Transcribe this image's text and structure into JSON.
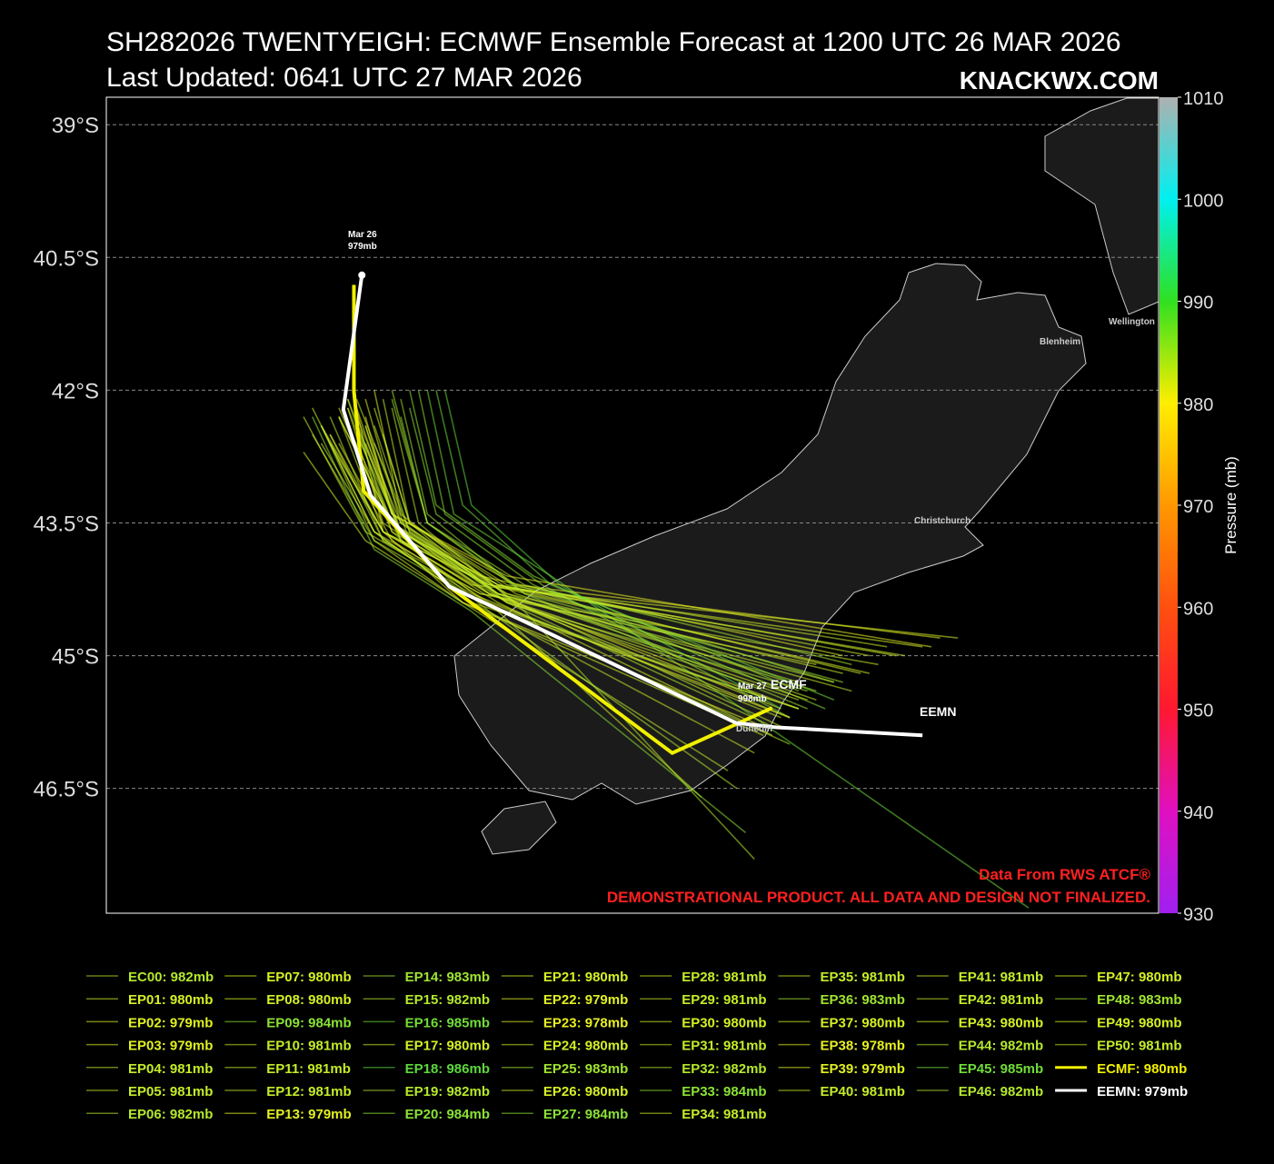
{
  "chart_data": {
    "type": "track",
    "title": "SH282026 TWENTYEIGH: ECMWF Ensemble Forecast at 1200 UTC 26 MAR 2026",
    "subtitle": "Last Updated: 0641 UTC 27 MAR 2026",
    "brand": "KNACKWX.COM",
    "xlim": [
      163.17,
      175.07
    ],
    "ylim": [
      -47.91,
      -38.69
    ],
    "yticks": [
      {
        "value": -39,
        "label": "39°S"
      },
      {
        "value": -40.5,
        "label": "40.5°S"
      },
      {
        "value": -42,
        "label": "42°S"
      },
      {
        "value": -43.5,
        "label": "43.5°S"
      },
      {
        "value": -45,
        "label": "45°S"
      },
      {
        "value": -46.5,
        "label": "46.5°S"
      }
    ],
    "grid": true,
    "colorbar": {
      "label": "Pressure (mb)",
      "lim": [
        930,
        1010
      ],
      "ticks": [
        930,
        940,
        950,
        960,
        970,
        980,
        990,
        1000,
        1010
      ],
      "colors": [
        "#a020f0",
        "#e010c0",
        "#ff1830",
        "#ff5010",
        "#ff9800",
        "#ffee00",
        "#30e020",
        "#00f0f0",
        "#b0b0b0"
      ]
    },
    "annotations": {
      "start_date": "Mar 26",
      "start_pressure": "979mb",
      "end_date": "Mar 27",
      "end_pressure": "998mb",
      "ecmf": "ECMF",
      "eemn": "EEMN",
      "city_wellington": "Wellington",
      "city_blenheim": "Blenheim",
      "city_christchurch": "Christchurch",
      "city_dunedin": "Dunedin",
      "credit": "Data From RWS ATCF®",
      "disclaimer": "DEMONSTRATIONAL PRODUCT. ALL DATA AND DESIGN NOT FINALIZED."
    },
    "series": [
      {
        "name": "EC00: 982mb",
        "color": "#b4e82c",
        "x": [
          165.9,
          166.4,
          167.6,
          171.0
        ],
        "values": [
          -42.2,
          -43.5,
          -44.3,
          -45.3
        ]
      },
      {
        "name": "EP01: 980mb",
        "color": "#d4f024",
        "x": [
          165.6,
          166.3,
          167.3,
          172.8
        ],
        "values": [
          -42.4,
          -43.6,
          -44.2,
          -44.8
        ]
      },
      {
        "name": "EP02: 979mb",
        "color": "#e0f020",
        "x": [
          166.2,
          166.5,
          167.8,
          170.8
        ],
        "values": [
          -42.0,
          -43.4,
          -44.4,
          -45.6
        ]
      },
      {
        "name": "EP03: 979mb",
        "color": "#e0f020",
        "x": [
          165.8,
          166.4,
          167.4,
          171.5
        ],
        "values": [
          -42.3,
          -43.5,
          -44.1,
          -45.0
        ]
      },
      {
        "name": "EP04: 981mb",
        "color": "#c4ec28",
        "x": [
          165.5,
          166.2,
          167.2,
          170.2
        ],
        "values": [
          -42.5,
          -43.7,
          -44.4,
          -46.3
        ]
      },
      {
        "name": "EP05: 981mb",
        "color": "#c4ec28",
        "x": [
          166.0,
          166.6,
          167.7,
          171.2
        ],
        "values": [
          -42.1,
          -43.6,
          -44.3,
          -45.5
        ]
      },
      {
        "name": "EP06: 982mb",
        "color": "#b4e82c",
        "x": [
          166.4,
          166.7,
          167.9,
          170.5
        ],
        "values": [
          -42.2,
          -43.5,
          -44.5,
          -47.3
        ]
      },
      {
        "name": "EP07: 980mb",
        "color": "#d4f024",
        "x": [
          165.7,
          166.3,
          167.5,
          171.8
        ],
        "values": [
          -42.6,
          -43.6,
          -44.2,
          -45.2
        ]
      },
      {
        "name": "EP08: 980mb",
        "color": "#d4f024",
        "x": [
          166.1,
          166.5,
          167.6,
          169.9
        ],
        "values": [
          -42.4,
          -43.7,
          -44.5,
          -46.6
        ]
      },
      {
        "name": "EP09: 984mb",
        "color": "#8ae234",
        "x": [
          166.6,
          166.9,
          168.0,
          171.0
        ],
        "values": [
          -42.0,
          -43.3,
          -44.1,
          -45.4
        ]
      },
      {
        "name": "EP10: 981mb",
        "color": "#c4ec28",
        "x": [
          165.4,
          166.1,
          167.3,
          170.8
        ],
        "values": [
          -42.3,
          -43.6,
          -44.3,
          -45.7
        ]
      },
      {
        "name": "EP11: 981mb",
        "color": "#c4ec28",
        "x": [
          166.3,
          166.6,
          167.7,
          172.0
        ],
        "values": [
          -42.5,
          -43.5,
          -44.2,
          -44.9
        ]
      },
      {
        "name": "EP12: 981mb",
        "color": "#c4ec28",
        "x": [
          165.9,
          166.4,
          167.6,
          171.4
        ],
        "values": [
          -42.1,
          -43.4,
          -44.3,
          -45.3
        ]
      },
      {
        "name": "EP13: 979mb",
        "color": "#e0f020",
        "x": [
          166.0,
          166.3,
          167.2,
          170.6
        ],
        "values": [
          -42.2,
          -43.6,
          -44.4,
          -45.8
        ]
      },
      {
        "name": "EP14: 983mb",
        "color": "#a0e430",
        "x": [
          166.5,
          166.8,
          167.9,
          171.6
        ],
        "values": [
          -42.3,
          -43.5,
          -44.2,
          -45.1
        ]
      },
      {
        "name": "EP15: 982mb",
        "color": "#b4e82c",
        "x": [
          165.6,
          166.2,
          167.4,
          170.9
        ],
        "values": [
          -42.4,
          -43.7,
          -44.4,
          -46.0
        ]
      },
      {
        "name": "EP16: 985mb",
        "color": "#70dc38",
        "x": [
          166.8,
          167.1,
          168.2,
          173.6
        ],
        "values": [
          -42.0,
          -43.4,
          -44.1,
          -47.85
        ]
      },
      {
        "name": "EP17: 980mb",
        "color": "#d4f024",
        "x": [
          165.8,
          166.4,
          167.5,
          172.4
        ],
        "values": [
          -42.2,
          -43.6,
          -44.2,
          -44.9
        ]
      },
      {
        "name": "EP18: 986mb",
        "color": "#5cd83c",
        "x": [
          167.0,
          167.3,
          168.3,
          170.8
        ],
        "values": [
          -42.0,
          -43.3,
          -44.2,
          -45.6
        ]
      },
      {
        "name": "EP19: 982mb",
        "color": "#b4e82c",
        "x": [
          166.2,
          166.6,
          167.7,
          171.1
        ],
        "values": [
          -42.6,
          -43.7,
          -44.4,
          -45.4
        ]
      },
      {
        "name": "EP20: 984mb",
        "color": "#8ae234",
        "x": [
          165.5,
          166.2,
          167.3,
          170.4
        ],
        "values": [
          -42.3,
          -43.8,
          -44.5,
          -47.0
        ]
      },
      {
        "name": "EP21: 980mb",
        "color": "#d4f024",
        "x": [
          166.1,
          166.5,
          167.6,
          171.7
        ],
        "values": [
          -42.1,
          -43.5,
          -44.2,
          -45.2
        ]
      },
      {
        "name": "EP22: 979mb",
        "color": "#e0f020",
        "x": [
          165.7,
          166.3,
          167.5,
          171.0
        ],
        "values": [
          -42.5,
          -43.6,
          -44.3,
          -45.6
        ]
      },
      {
        "name": "EP23: 978mb",
        "color": "#e8f020",
        "x": [
          166.0,
          166.4,
          167.8,
          172.6
        ],
        "values": [
          -42.2,
          -43.4,
          -44.2,
          -44.8
        ]
      },
      {
        "name": "EP24: 980mb",
        "color": "#d4f024",
        "x": [
          165.9,
          166.5,
          167.6,
          170.7
        ],
        "values": [
          -42.4,
          -43.7,
          -44.4,
          -45.9
        ]
      },
      {
        "name": "EP25: 983mb",
        "color": "#a0e430",
        "x": [
          166.4,
          166.8,
          167.9,
          171.5
        ],
        "values": [
          -42.1,
          -43.5,
          -44.3,
          -45.3
        ]
      },
      {
        "name": "EP26: 980mb",
        "color": "#d4f024",
        "x": [
          165.6,
          166.2,
          167.4,
          171.2
        ],
        "values": [
          -42.6,
          -43.6,
          -44.3,
          -45.1
        ]
      },
      {
        "name": "EP27: 984mb",
        "color": "#8ae234",
        "x": [
          166.7,
          167.0,
          168.1,
          170.9
        ],
        "values": [
          -42.0,
          -43.4,
          -44.2,
          -45.7
        ]
      },
      {
        "name": "EP28: 981mb",
        "color": "#c4ec28",
        "x": [
          165.8,
          166.3,
          167.5,
          172.2
        ],
        "values": [
          -42.3,
          -43.6,
          -44.2,
          -45.0
        ]
      },
      {
        "name": "EP29: 981mb",
        "color": "#c4ec28",
        "x": [
          166.2,
          166.6,
          167.7,
          171.0
        ],
        "values": [
          -42.2,
          -43.5,
          -44.4,
          -45.5
        ]
      },
      {
        "name": "EP30: 980mb",
        "color": "#d4f024",
        "x": [
          165.4,
          166.1,
          167.2,
          170.6
        ],
        "values": [
          -42.7,
          -43.7,
          -44.4,
          -45.9
        ]
      },
      {
        "name": "EP31: 981mb",
        "color": "#c4ec28",
        "x": [
          166.1,
          166.5,
          167.6,
          171.6
        ],
        "values": [
          -42.4,
          -43.6,
          -44.3,
          -45.4
        ]
      },
      {
        "name": "EP32: 982mb",
        "color": "#b4e82c",
        "x": [
          165.9,
          166.4,
          167.5,
          170.3
        ],
        "values": [
          -42.1,
          -43.6,
          -44.5,
          -46.5
        ]
      },
      {
        "name": "EP33: 984mb",
        "color": "#8ae234",
        "x": [
          166.6,
          166.9,
          168.0,
          171.3
        ],
        "values": [
          -42.2,
          -43.4,
          -44.2,
          -45.6
        ]
      },
      {
        "name": "EP34: 981mb",
        "color": "#c4ec28",
        "x": [
          165.7,
          166.3,
          167.4,
          171.9
        ],
        "values": [
          -42.5,
          -43.7,
          -44.3,
          -45.1
        ]
      },
      {
        "name": "EP35: 981mb",
        "color": "#c4ec28",
        "x": [
          166.0,
          166.5,
          167.6,
          170.8
        ],
        "values": [
          -42.3,
          -43.5,
          -44.3,
          -45.8
        ]
      },
      {
        "name": "EP36: 983mb",
        "color": "#a0e430",
        "x": [
          166.4,
          166.8,
          167.8,
          171.4
        ],
        "values": [
          -42.0,
          -43.5,
          -44.2,
          -45.3
        ]
      },
      {
        "name": "EP37: 980mb",
        "color": "#d4f024",
        "x": [
          165.6,
          166.2,
          167.3,
          171.0
        ],
        "values": [
          -42.4,
          -43.6,
          -44.4,
          -45.6
        ]
      },
      {
        "name": "EP38: 978mb",
        "color": "#e8f020",
        "x": [
          166.1,
          166.4,
          167.7,
          172.5
        ],
        "values": [
          -42.3,
          -43.4,
          -44.1,
          -44.9
        ]
      },
      {
        "name": "EP39: 979mb",
        "color": "#e0f020",
        "x": [
          165.8,
          166.4,
          167.5,
          170.9
        ],
        "values": [
          -42.6,
          -43.7,
          -44.4,
          -45.7
        ]
      },
      {
        "name": "EP40: 981mb",
        "color": "#c4ec28",
        "x": [
          166.3,
          166.6,
          167.8,
          171.2
        ],
        "values": [
          -42.1,
          -43.5,
          -44.3,
          -45.4
        ]
      },
      {
        "name": "EP41: 981mb",
        "color": "#c4ec28",
        "x": [
          165.5,
          166.2,
          167.3,
          170.5
        ],
        "values": [
          -42.2,
          -43.6,
          -44.4,
          -46.1
        ]
      },
      {
        "name": "EP42: 981mb",
        "color": "#c4ec28",
        "x": [
          166.0,
          166.5,
          167.6,
          171.8
        ],
        "values": [
          -42.5,
          -43.6,
          -44.2,
          -45.0
        ]
      },
      {
        "name": "EP43: 980mb",
        "color": "#d4f024",
        "x": [
          165.9,
          166.3,
          167.5,
          171.1
        ],
        "values": [
          -42.2,
          -43.5,
          -44.3,
          -45.5
        ]
      },
      {
        "name": "EP44: 982mb",
        "color": "#b4e82c",
        "x": [
          166.2,
          166.6,
          167.7,
          170.7
        ],
        "values": [
          -42.4,
          -43.6,
          -44.4,
          -45.8
        ]
      },
      {
        "name": "EP45: 985mb",
        "color": "#70dc38",
        "x": [
          166.9,
          167.2,
          168.2,
          171.4
        ],
        "values": [
          -42.0,
          -43.3,
          -44.2,
          -45.5
        ]
      },
      {
        "name": "EP46: 982mb",
        "color": "#b4e82c",
        "x": [
          165.7,
          166.3,
          167.4,
          171.0
        ],
        "values": [
          -42.3,
          -43.7,
          -44.4,
          -45.6
        ]
      },
      {
        "name": "EP47: 980mb",
        "color": "#d4f024",
        "x": [
          166.1,
          166.5,
          167.6,
          172.1
        ],
        "values": [
          -42.6,
          -43.6,
          -44.2,
          -45.0
        ]
      },
      {
        "name": "EP48: 983mb",
        "color": "#a0e430",
        "x": [
          166.5,
          166.8,
          167.9,
          171.1
        ],
        "values": [
          -42.1,
          -43.4,
          -44.3,
          -45.6
        ]
      },
      {
        "name": "EP49: 980mb",
        "color": "#d4f024",
        "x": [
          165.8,
          166.4,
          167.5,
          170.9
        ],
        "values": [
          -42.3,
          -43.5,
          -44.3,
          -45.7
        ]
      },
      {
        "name": "EP50: 981mb",
        "color": "#c4ec28",
        "x": [
          166.0,
          166.5,
          167.7,
          171.5
        ],
        "values": [
          -42.4,
          -43.6,
          -44.3,
          -45.2
        ]
      },
      {
        "name": "ECMF: 980mb",
        "color": "#f0f000",
        "x": [
          165.97,
          165.97,
          166.08,
          167.05,
          169.57,
          170.7
        ],
        "values": [
          -40.81,
          -42.01,
          -43.14,
          -44.22,
          -46.1,
          -45.59
        ]
      },
      {
        "name": "EEMN: 979mb",
        "color": "#ffffff",
        "x": [
          166.06,
          165.85,
          166.16,
          167.05,
          167.83,
          170.29,
          170.75,
          172.4
        ],
        "values": [
          -40.7,
          -42.22,
          -43.19,
          -44.22,
          -44.58,
          -45.76,
          -45.81,
          -45.9
        ]
      }
    ]
  }
}
